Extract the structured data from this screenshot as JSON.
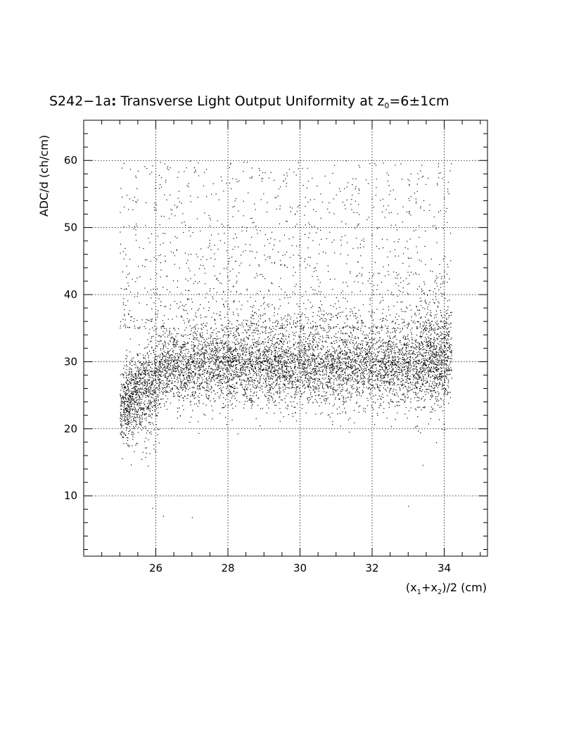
{
  "chart_data": {
    "type": "scatter",
    "title": {
      "main": "S242−1a",
      "colon": ":",
      "text": " Transverse Light Output Uniformity at z",
      "subscript": "0",
      "value": "=6±1cm"
    },
    "xlabel": {
      "open": "(x",
      "sub1": "1",
      "plus": "+x",
      "sub2": "2",
      "rest": ")/2 (cm)"
    },
    "ylabel": "ADC/d (ch/cm)",
    "xlim": [
      24,
      35.2
    ],
    "ylim": [
      1,
      66
    ],
    "x_ticks": [
      "26",
      "28",
      "30",
      "32",
      "34"
    ],
    "x_tick_values": [
      26,
      28,
      30,
      32,
      34
    ],
    "y_ticks": [
      "10",
      "20",
      "30",
      "40",
      "50",
      "60"
    ],
    "y_tick_values": [
      10,
      20,
      30,
      40,
      50,
      60
    ],
    "grid": true,
    "colors": {
      "marker": "#000000",
      "grid": "#000000",
      "background": "#ffffff"
    },
    "distribution": {
      "x_range": [
        25.0,
        34.2
      ],
      "core_mean": 29.5,
      "core_spread": 3.0,
      "edge_dip_low_x": 25.6,
      "edge_dip_low_value": 23,
      "sparse_upper_range": [
        35,
        60
      ]
    },
    "series": [
      {
        "points": [
          [
            25.1,
            22.5
          ],
          [
            25.2,
            24.1
          ],
          [
            25.3,
            21.8
          ],
          [
            25.4,
            20.2
          ],
          [
            25.5,
            19.5
          ],
          [
            25.6,
            23.0
          ],
          [
            25.7,
            17.2
          ],
          [
            25.8,
            21.0
          ],
          [
            25.9,
            22.8
          ],
          [
            26.0,
            24.6
          ],
          [
            25.3,
            26.8
          ],
          [
            25.5,
            25.9
          ],
          [
            25.8,
            27.2
          ],
          [
            26.1,
            26.0
          ],
          [
            26.3,
            27.5
          ],
          [
            26.5,
            28.1
          ],
          [
            26.7,
            26.9
          ],
          [
            26.9,
            29.0
          ],
          [
            27.1,
            28.3
          ],
          [
            27.3,
            29.8
          ],
          [
            27.5,
            30.6
          ],
          [
            27.7,
            28.9
          ],
          [
            27.9,
            31.2
          ],
          [
            28.1,
            29.4
          ],
          [
            28.3,
            27.8
          ],
          [
            28.5,
            30.1
          ],
          [
            28.7,
            28.6
          ],
          [
            28.9,
            29.9
          ],
          [
            29.1,
            28.2
          ],
          [
            29.3,
            30.7
          ],
          [
            29.5,
            29.3
          ],
          [
            29.7,
            28.5
          ],
          [
            29.9,
            30.4
          ],
          [
            30.1,
            29.0
          ],
          [
            30.3,
            31.0
          ],
          [
            30.5,
            29.7
          ],
          [
            30.7,
            28.8
          ],
          [
            30.9,
            30.9
          ],
          [
            31.1,
            29.5
          ],
          [
            31.3,
            31.4
          ],
          [
            31.5,
            30.2
          ],
          [
            31.7,
            29.1
          ],
          [
            31.9,
            31.6
          ],
          [
            32.1,
            30.5
          ],
          [
            32.3,
            29.8
          ],
          [
            32.5,
            31.9
          ],
          [
            32.7,
            30.0
          ],
          [
            32.9,
            28.9
          ],
          [
            33.1,
            31.2
          ],
          [
            33.3,
            30.3
          ],
          [
            33.5,
            29.4
          ],
          [
            33.7,
            32.5
          ],
          [
            33.9,
            31.0
          ],
          [
            34.0,
            33.6
          ],
          [
            26.4,
            38.5
          ],
          [
            27.2,
            42.0
          ],
          [
            28.6,
            47.5
          ],
          [
            29.4,
            55.8
          ],
          [
            30.8,
            52.3
          ],
          [
            31.6,
            44.9
          ],
          [
            32.4,
            58.2
          ],
          [
            33.2,
            49.7
          ],
          [
            33.8,
            56.4
          ],
          [
            26.0,
            52.7
          ],
          [
            25.4,
            50.2
          ],
          [
            27.8,
            57.6
          ],
          [
            30.2,
            58.9
          ],
          [
            25.9,
            8.2
          ],
          [
            26.2,
            7.0
          ],
          [
            27.0,
            6.8
          ],
          [
            33.0,
            8.5
          ],
          [
            25.6,
            15.5
          ],
          [
            33.4,
            14.6
          ],
          [
            25.1,
            45.4
          ],
          [
            26.9,
            44.0
          ],
          [
            28.0,
            40.8
          ],
          [
            29.0,
            38.9
          ],
          [
            30.0,
            41.2
          ],
          [
            31.0,
            39.6
          ],
          [
            32.0,
            42.8
          ],
          [
            33.0,
            40.1
          ],
          [
            34.0,
            43.5
          ],
          [
            25.7,
            28.5
          ],
          [
            26.6,
            25.1
          ],
          [
            27.4,
            24.7
          ],
          [
            28.2,
            25.3
          ],
          [
            29.2,
            24.9
          ],
          [
            30.4,
            25.6
          ],
          [
            31.2,
            24.8
          ],
          [
            32.2,
            25.7
          ],
          [
            33.6,
            24.4
          ],
          [
            34.1,
            26.9
          ]
        ]
      }
    ]
  }
}
